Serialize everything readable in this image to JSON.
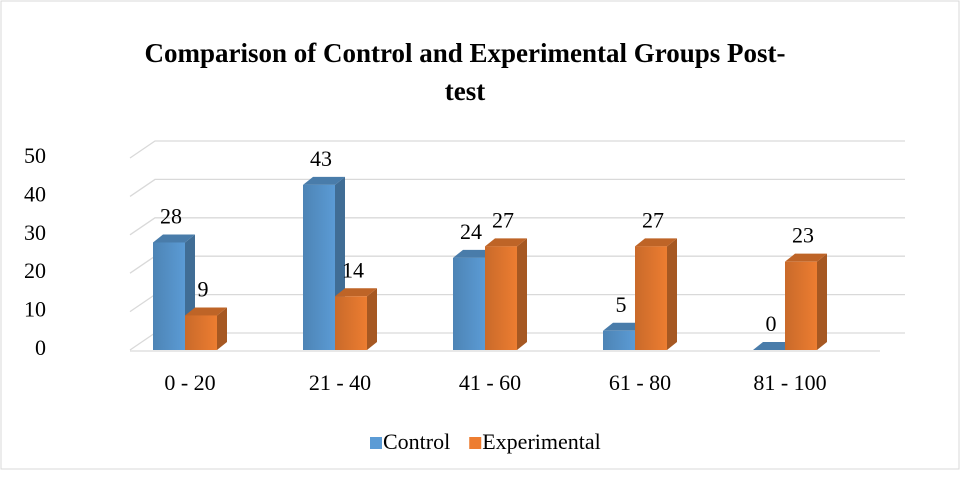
{
  "chart_data": {
    "type": "bar3d",
    "title": "Comparison of Control and Experimental Groups Post-test",
    "categories": [
      "0 - 20",
      "21 - 40",
      "41 - 60",
      "61 - 80",
      "81 - 100"
    ],
    "series": [
      {
        "name": "Control",
        "color": "#5b9bd5",
        "values": [
          28,
          43,
          24,
          5,
          0
        ]
      },
      {
        "name": "Experimental",
        "color": "#ed7d31",
        "values": [
          9,
          14,
          27,
          27,
          23
        ]
      }
    ],
    "ylim": [
      0,
      50
    ],
    "yticks": [
      0,
      10,
      20,
      30,
      40,
      50
    ],
    "grid": true,
    "legend": "bottom"
  }
}
